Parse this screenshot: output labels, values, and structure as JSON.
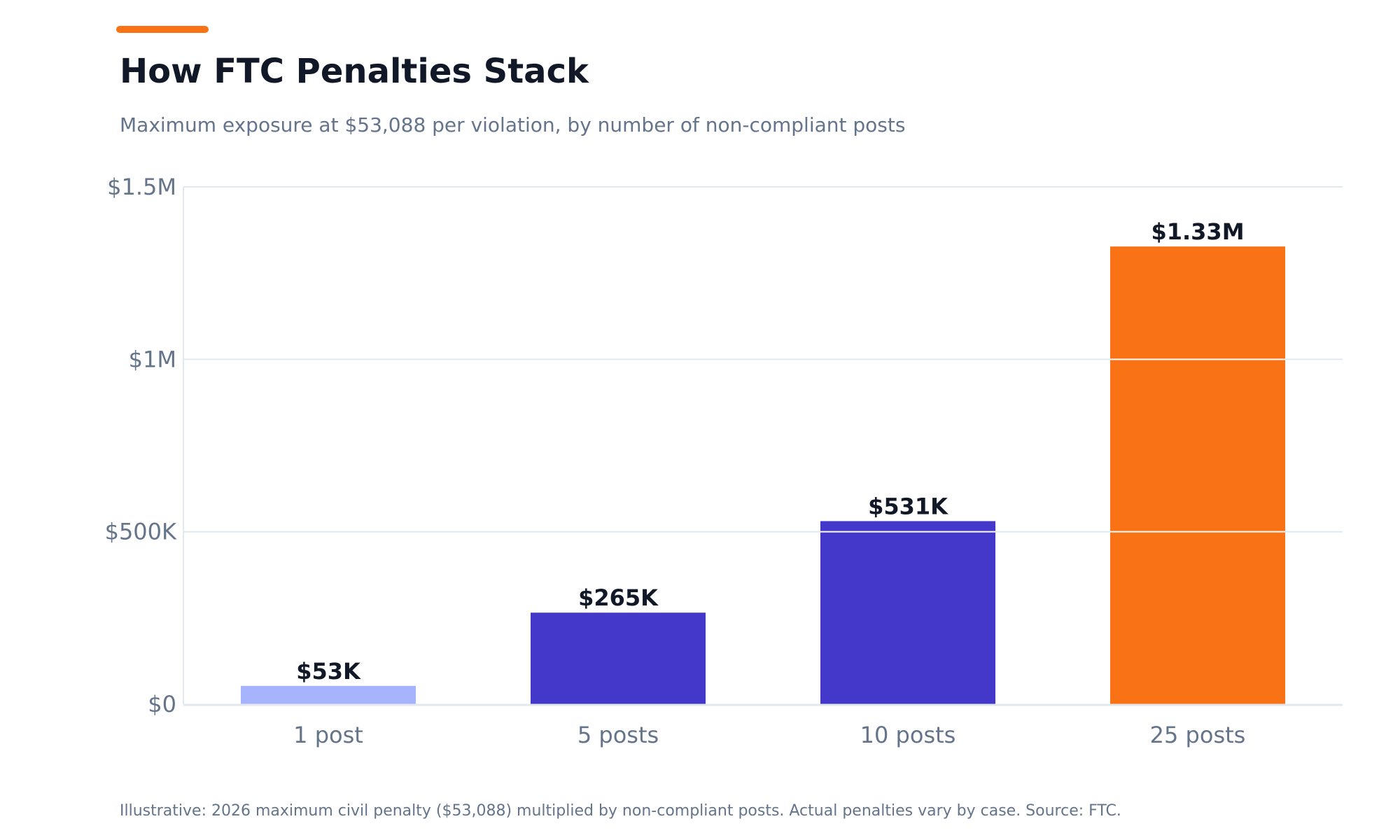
{
  "title": "How FTC Penalties Stack",
  "subtitle": "Maximum exposure at $53,088 per violation, by number of non-compliant posts",
  "footnote": "Illustrative: 2026 maximum civil penalty ($53,088) multiplied by non-compliant posts. Actual penalties vary by case. Source: FTC.",
  "colors": {
    "accent": "#f97316",
    "bar_light": "#a5b4fc",
    "bar_primary": "#4338ca",
    "bar_highlight": "#f97316",
    "grid": "#e2e8f0",
    "axis_text": "#64748b",
    "label_text": "#111827"
  },
  "chart_data": {
    "type": "bar",
    "title": "How FTC Penalties Stack",
    "subtitle": "Maximum exposure at $53,088 per violation, by number of non-compliant posts",
    "xlabel": "",
    "ylabel": "",
    "categories": [
      "1 post",
      "5 posts",
      "10 posts",
      "25 posts"
    ],
    "values": [
      53088,
      265440,
      530880,
      1327200
    ],
    "data_labels": [
      "$53K",
      "$265K",
      "$531K",
      "$1.33M"
    ],
    "bar_colors": [
      "#a5b4fc",
      "#4338ca",
      "#4338ca",
      "#f97316"
    ],
    "ylim": [
      0,
      1500000
    ],
    "yticks": [
      0,
      500000,
      1000000,
      1500000
    ],
    "ytick_labels": [
      "$0",
      "$500K",
      "$1M",
      "$1.5M"
    ],
    "grid": true,
    "legend": false
  }
}
